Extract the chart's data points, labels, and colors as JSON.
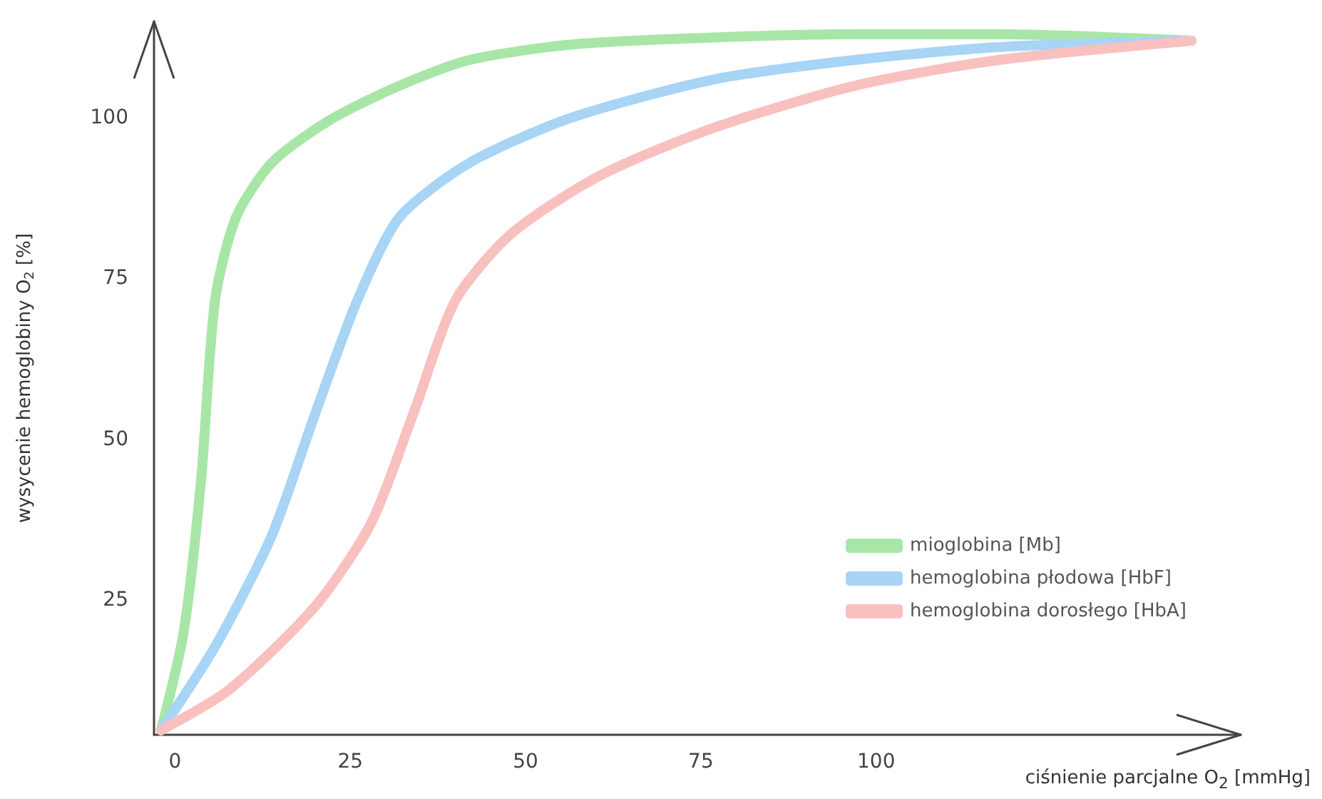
{
  "chart_data": {
    "type": "line",
    "xlabel": "ciśnienie parcjalne O$_{2}$ [mmHg]",
    "ylabel": "wysycenie hemoglobiny O$_{2}$ [%]",
    "xlim": [
      -3,
      152
    ],
    "ylim": [
      4,
      115
    ],
    "xticks": [
      0,
      25,
      50,
      75,
      100
    ],
    "yticks": [
      25,
      50,
      75,
      100
    ],
    "grid": false,
    "legend": "bottom right",
    "marker": "none",
    "line_style": "solid",
    "series": [
      {
        "name": "mioglobina [Mb]",
        "color": "#a8e6a8",
        "x": [
          -2,
          1.2,
          3.7,
          5.7,
          8.7,
          13.8,
          22,
          32,
          42,
          56.5,
          77,
          97,
          117.5,
          145
        ],
        "values": [
          4.7,
          19.8,
          43.5,
          71.6,
          84.5,
          93,
          99.6,
          105,
          109,
          111.4,
          112.5,
          113,
          113,
          112
        ]
      },
      {
        "name": "hemoglobina płodowa [HbF]",
        "color": "#a8d4f5",
        "x": [
          -2,
          5.7,
          13.8,
          20,
          26,
          32,
          42,
          56.5,
          77,
          97,
          117.5,
          145
        ],
        "values": [
          4.7,
          17.7,
          35,
          54,
          71.6,
          84.5,
          93,
          100,
          106,
          109,
          111,
          112
        ]
      },
      {
        "name": "hemoglobina dorosłego [HbA]",
        "color": "#f9c0c0",
        "x": [
          -2,
          7.7,
          20,
          28,
          34,
          40,
          48,
          60.6,
          77,
          97,
          117.5,
          145
        ],
        "values": [
          4.7,
          11,
          24,
          37,
          54,
          71.6,
          82,
          91,
          98.5,
          105,
          109,
          112
        ]
      }
    ]
  }
}
